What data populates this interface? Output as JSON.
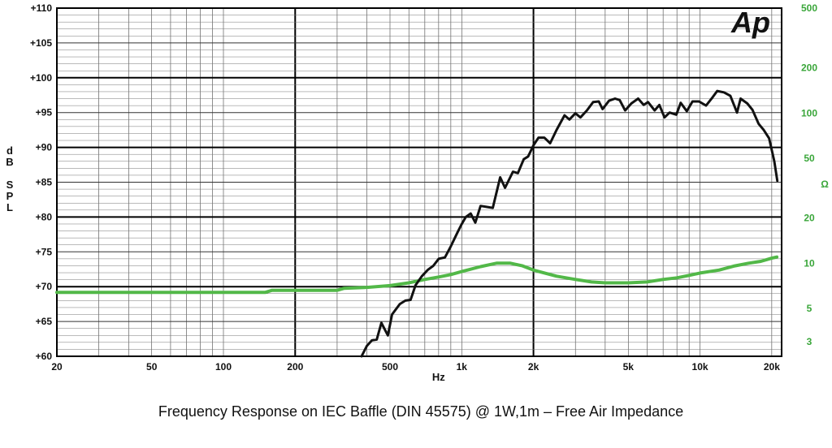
{
  "chart_data": {
    "type": "line",
    "caption": "Frequency Response on IEC Baffle (DIN 45575)  @ 1W,1m – Free  Air Impedance",
    "logo_text": "Ap",
    "xlabel": "Hz",
    "ylabel_left": [
      "d",
      "B",
      "",
      "S",
      "P",
      "L"
    ],
    "ylabel_right": "Ω",
    "x_scale": "log",
    "xlim": [
      20,
      22000
    ],
    "ylim_left": [
      60,
      110
    ],
    "ylim_right_log": [
      2.4,
      500
    ],
    "x_ticks": [
      {
        "v": 20,
        "label": "20"
      },
      {
        "v": 50,
        "label": "50"
      },
      {
        "v": 100,
        "label": "100"
      },
      {
        "v": 200,
        "label": "200"
      },
      {
        "v": 500,
        "label": "500"
      },
      {
        "v": 1000,
        "label": "1k"
      },
      {
        "v": 2000,
        "label": "2k"
      },
      {
        "v": 5000,
        "label": "5k"
      },
      {
        "v": 10000,
        "label": "10k"
      },
      {
        "v": 20000,
        "label": "20k"
      }
    ],
    "y_ticks_left": [
      {
        "v": 110,
        "label": "+110"
      },
      {
        "v": 105,
        "label": "+105"
      },
      {
        "v": 100,
        "label": "+100"
      },
      {
        "v": 95,
        "label": "+95"
      },
      {
        "v": 90,
        "label": "+90"
      },
      {
        "v": 85,
        "label": "+85"
      },
      {
        "v": 80,
        "label": "+80"
      },
      {
        "v": 75,
        "label": "+75"
      },
      {
        "v": 70,
        "label": "+70"
      },
      {
        "v": 65,
        "label": "+65"
      },
      {
        "v": 60,
        "label": "+60"
      }
    ],
    "y_ticks_right": [
      {
        "v": 500,
        "label": "500"
      },
      {
        "v": 200,
        "label": "200"
      },
      {
        "v": 100,
        "label": "100"
      },
      {
        "v": 50,
        "label": "50"
      },
      {
        "v": 20,
        "label": "20"
      },
      {
        "v": 10,
        "label": "10"
      },
      {
        "v": 5,
        "label": "5"
      },
      {
        "v": 3,
        "label": "3"
      }
    ],
    "grid": true,
    "series": [
      {
        "axis": "left",
        "color": "#111111",
        "points": [
          [
            380,
            60.0
          ],
          [
            400,
            61.5
          ],
          [
            420,
            62.3
          ],
          [
            440,
            62.4
          ],
          [
            460,
            64.8
          ],
          [
            490,
            63.0
          ],
          [
            510,
            66.0
          ],
          [
            550,
            67.5
          ],
          [
            580,
            68.0
          ],
          [
            610,
            68.1
          ],
          [
            640,
            70.2
          ],
          [
            680,
            71.5
          ],
          [
            720,
            72.4
          ],
          [
            760,
            73.0
          ],
          [
            800,
            74.0
          ],
          [
            850,
            74.2
          ],
          [
            900,
            75.8
          ],
          [
            960,
            77.8
          ],
          [
            1000,
            79.0
          ],
          [
            1040,
            80.0
          ],
          [
            1090,
            80.5
          ],
          [
            1140,
            79.2
          ],
          [
            1200,
            81.6
          ],
          [
            1300,
            81.4
          ],
          [
            1350,
            81.3
          ],
          [
            1450,
            85.7
          ],
          [
            1520,
            84.2
          ],
          [
            1640,
            86.5
          ],
          [
            1720,
            86.3
          ],
          [
            1820,
            88.3
          ],
          [
            1900,
            88.7
          ],
          [
            2000,
            90.3
          ],
          [
            2100,
            91.4
          ],
          [
            2220,
            91.4
          ],
          [
            2350,
            90.6
          ],
          [
            2500,
            92.5
          ],
          [
            2700,
            94.6
          ],
          [
            2830,
            94.0
          ],
          [
            3000,
            94.9
          ],
          [
            3150,
            94.3
          ],
          [
            3350,
            95.3
          ],
          [
            3560,
            96.5
          ],
          [
            3760,
            96.6
          ],
          [
            3900,
            95.5
          ],
          [
            4150,
            96.7
          ],
          [
            4400,
            97.0
          ],
          [
            4600,
            96.8
          ],
          [
            4850,
            95.3
          ],
          [
            5150,
            96.3
          ],
          [
            5500,
            97.0
          ],
          [
            5800,
            96.1
          ],
          [
            6050,
            96.5
          ],
          [
            6450,
            95.3
          ],
          [
            6750,
            96.1
          ],
          [
            7100,
            94.3
          ],
          [
            7450,
            95.0
          ],
          [
            7950,
            94.7
          ],
          [
            8300,
            96.4
          ],
          [
            8800,
            95.2
          ],
          [
            9300,
            96.6
          ],
          [
            9900,
            96.6
          ],
          [
            10600,
            96.0
          ],
          [
            11300,
            97.2
          ],
          [
            11800,
            98.1
          ],
          [
            12600,
            97.9
          ],
          [
            13400,
            97.4
          ],
          [
            14300,
            95.0
          ],
          [
            14800,
            97.0
          ],
          [
            15800,
            96.3
          ],
          [
            16600,
            95.4
          ],
          [
            17600,
            93.4
          ],
          [
            18500,
            92.5
          ],
          [
            19500,
            91.3
          ],
          [
            20500,
            88.0
          ],
          [
            21100,
            85.2
          ]
        ]
      },
      {
        "axis": "right",
        "color": "#52b848",
        "points": [
          [
            20,
            6.4
          ],
          [
            100,
            6.4
          ],
          [
            150,
            6.4
          ],
          [
            160,
            6.6
          ],
          [
            200,
            6.6
          ],
          [
            300,
            6.6
          ],
          [
            320,
            6.8
          ],
          [
            400,
            6.9
          ],
          [
            500,
            7.1
          ],
          [
            600,
            7.4
          ],
          [
            700,
            7.8
          ],
          [
            800,
            8.1
          ],
          [
            900,
            8.4
          ],
          [
            1000,
            8.8
          ],
          [
            1200,
            9.5
          ],
          [
            1400,
            10.0
          ],
          [
            1600,
            10.0
          ],
          [
            1800,
            9.6
          ],
          [
            2000,
            9.0
          ],
          [
            2500,
            8.2
          ],
          [
            3000,
            7.8
          ],
          [
            3500,
            7.5
          ],
          [
            4000,
            7.4
          ],
          [
            5000,
            7.4
          ],
          [
            6000,
            7.5
          ],
          [
            7000,
            7.8
          ],
          [
            8000,
            8.0
          ],
          [
            9000,
            8.3
          ],
          [
            10000,
            8.6
          ],
          [
            12000,
            9.0
          ],
          [
            14000,
            9.6
          ],
          [
            16000,
            10.0
          ],
          [
            18000,
            10.3
          ],
          [
            20000,
            10.8
          ],
          [
            21000,
            11.0
          ]
        ]
      }
    ]
  }
}
